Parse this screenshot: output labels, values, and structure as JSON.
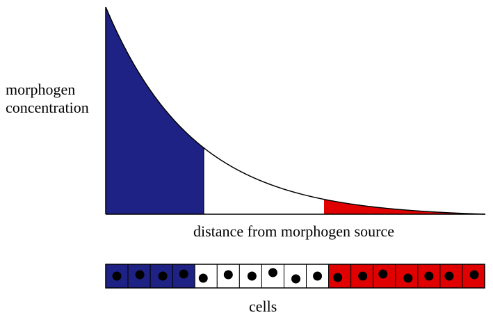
{
  "labels": {
    "y_line1": "morphogen",
    "y_line2": "concentration",
    "x": "distance from morphogen source",
    "cells": "cells"
  },
  "colors": {
    "blue": "#1f2285",
    "white": "#ffffff",
    "red": "#e00000",
    "outline": "#000000"
  },
  "gradient": {
    "thresholds": [
      "high",
      "low"
    ],
    "regions": [
      {
        "name": "blue",
        "color": "#1f2285"
      },
      {
        "name": "white",
        "color": "#ffffff"
      },
      {
        "name": "red",
        "color": "#e00000"
      }
    ]
  },
  "cells": [
    "blue",
    "blue",
    "blue",
    "blue",
    "white",
    "white",
    "white",
    "white",
    "white",
    "white",
    "red",
    "red",
    "red",
    "red",
    "red",
    "red",
    "red"
  ]
}
